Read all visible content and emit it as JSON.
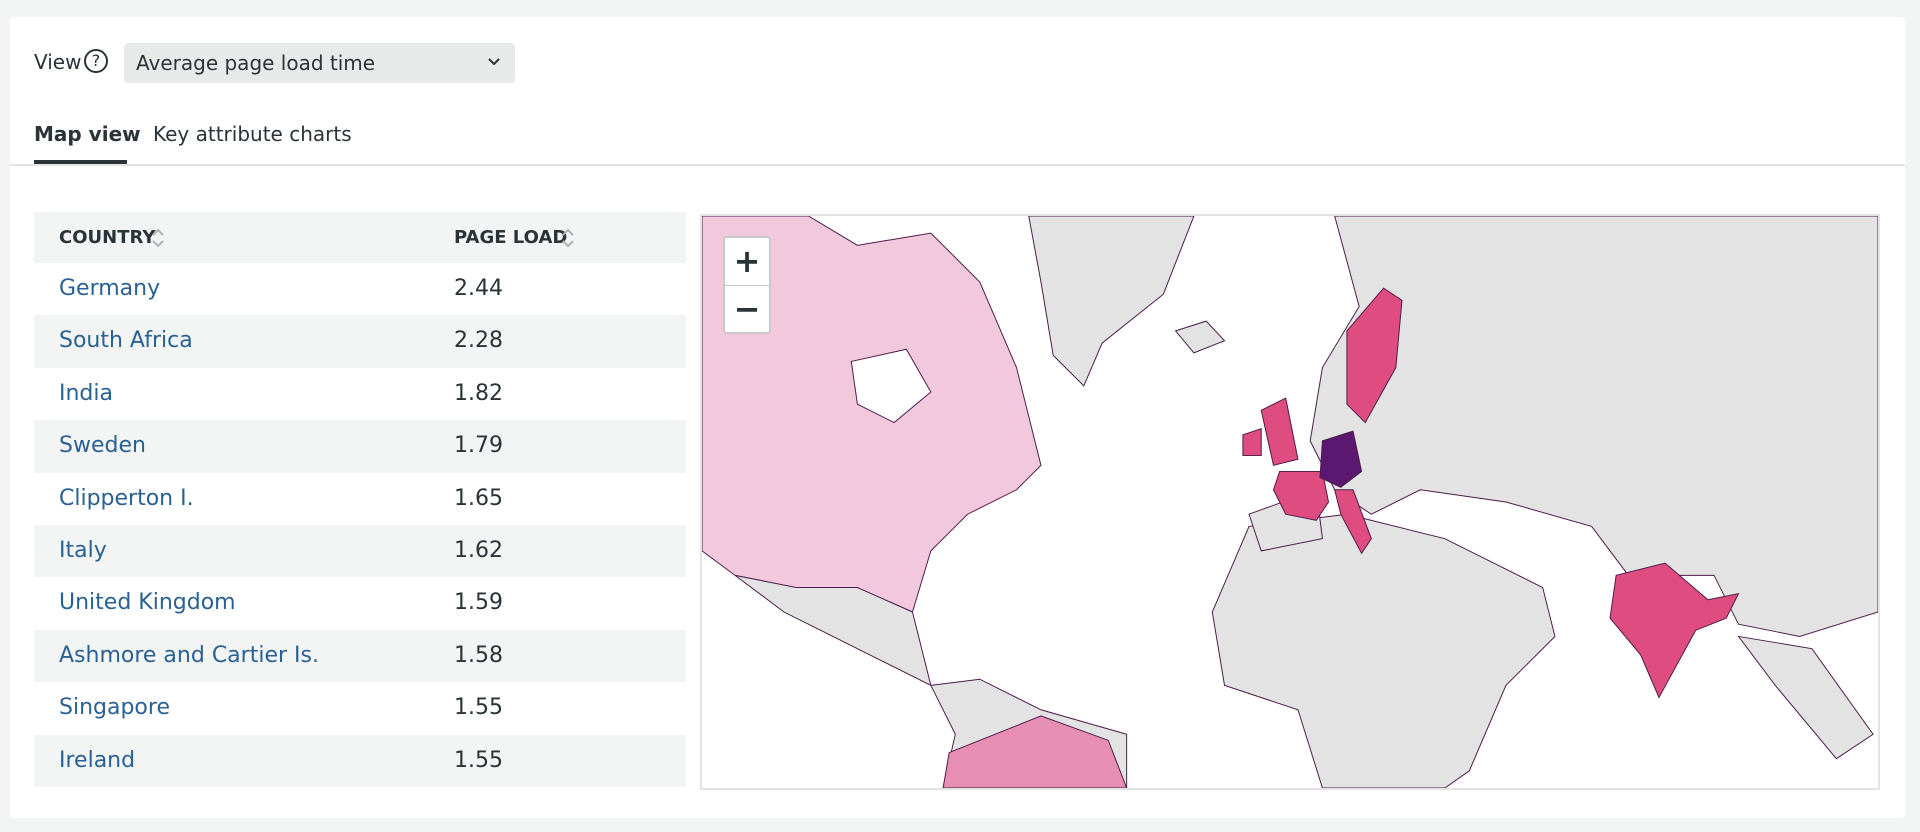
{
  "view": {
    "label": "View",
    "selected": "Average page load time"
  },
  "tabs": [
    "Map view",
    "Key attribute charts"
  ],
  "table": {
    "columns": [
      "COUNTRY",
      "PAGE LOAD"
    ],
    "rows": [
      [
        "Germany",
        "2.44"
      ],
      [
        "South Africa",
        "2.28"
      ],
      [
        "India",
        "1.82"
      ],
      [
        "Sweden",
        "1.79"
      ],
      [
        "Clipperton I.",
        "1.65"
      ],
      [
        "Italy",
        "1.62"
      ],
      [
        "United Kingdom",
        "1.59"
      ],
      [
        "Ashmore and Cartier Is.",
        "1.58"
      ],
      [
        "Singapore",
        "1.55"
      ],
      [
        "Ireland",
        "1.55"
      ]
    ]
  },
  "map": {
    "zoom_in": "+",
    "zoom_out": "−"
  }
}
